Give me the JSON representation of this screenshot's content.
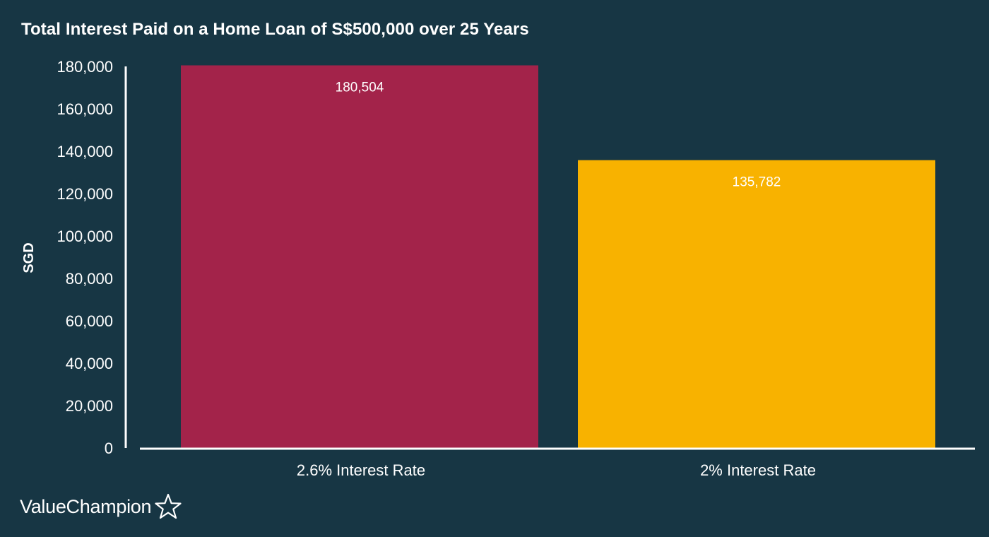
{
  "chart_data": {
    "type": "bar",
    "title": "Total Interest Paid on a Home Loan of S$500,000 over 25 Years",
    "xlabel": "",
    "ylabel": "SGD",
    "categories": [
      "2.6% Interest Rate",
      "2% Interest Rate"
    ],
    "values": [
      180504,
      135782
    ],
    "data_labels": [
      "180,504",
      "135,782"
    ],
    "bar_colors": [
      "#a3234a",
      "#f8b200"
    ],
    "ylim": [
      0,
      180000
    ],
    "yticks": [
      0,
      20000,
      40000,
      60000,
      80000,
      100000,
      120000,
      140000,
      160000,
      180000
    ],
    "ytick_labels": [
      "0",
      "20,000",
      "40,000",
      "60,000",
      "80,000",
      "100,000",
      "120,000",
      "140,000",
      "160,000",
      "180,000"
    ],
    "grid": false,
    "legend": "none"
  },
  "brand": {
    "name": "ValueChampion",
    "icon": "star-outline-icon"
  },
  "colors": {
    "background": "#173644",
    "text": "#ffffff",
    "axis": "#ffffff"
  }
}
